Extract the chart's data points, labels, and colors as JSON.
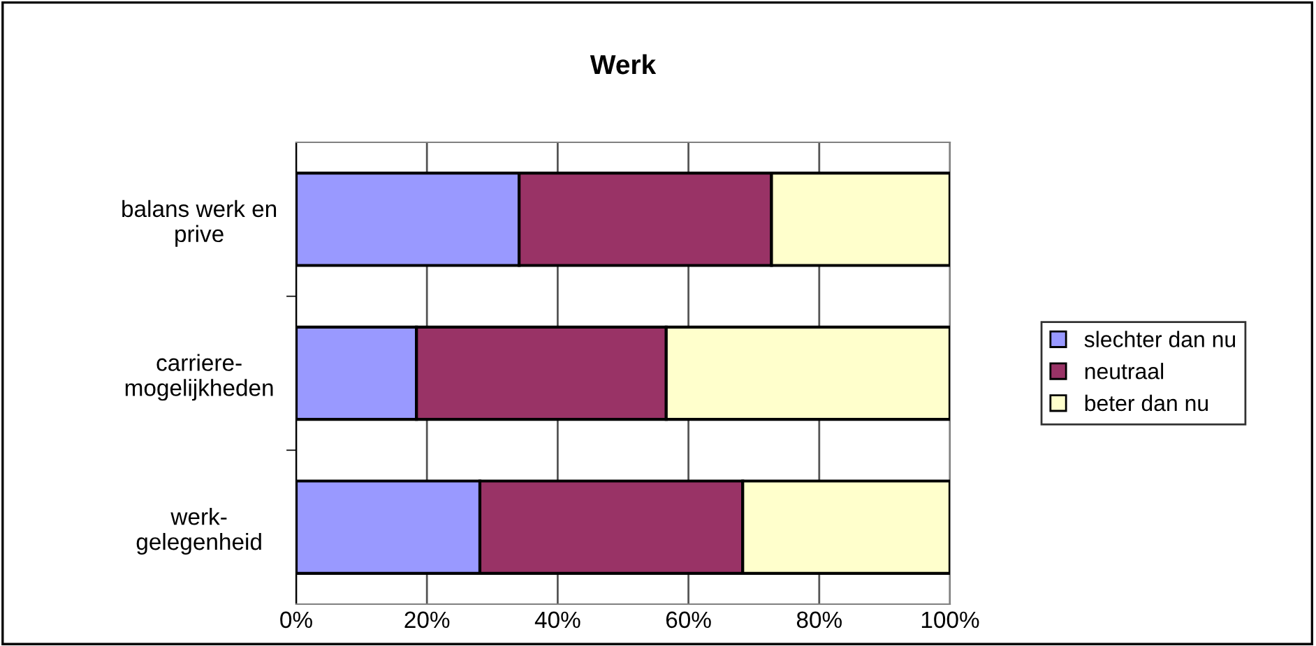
{
  "chart_data": {
    "type": "bar",
    "orientation": "horizontal",
    "stacked": true,
    "title": "Werk",
    "categories": [
      "balans werk en\nprive",
      "carriere-\nmogelijkheden",
      "werk-\ngelegenheid"
    ],
    "series": [
      {
        "name": "slechter dan nu",
        "color": "#9999ff",
        "values": [
          34.1,
          18.4,
          28.1
        ]
      },
      {
        "name": "neutraal",
        "color": "#993366",
        "values": [
          38.6,
          38.2,
          40.2
        ]
      },
      {
        "name": "beter dan nu",
        "color": "#ffffcc",
        "values": [
          27.3,
          43.4,
          31.7
        ]
      }
    ],
    "xlim": [
      0,
      100
    ],
    "xticks": [
      {
        "value": 0,
        "label": "0%"
      },
      {
        "value": 20,
        "label": "20%"
      },
      {
        "value": 40,
        "label": "40%"
      },
      {
        "value": 60,
        "label": "60%"
      },
      {
        "value": 80,
        "label": "80%"
      },
      {
        "value": 100,
        "label": "100%"
      }
    ],
    "grid": "x",
    "legend": "right"
  }
}
